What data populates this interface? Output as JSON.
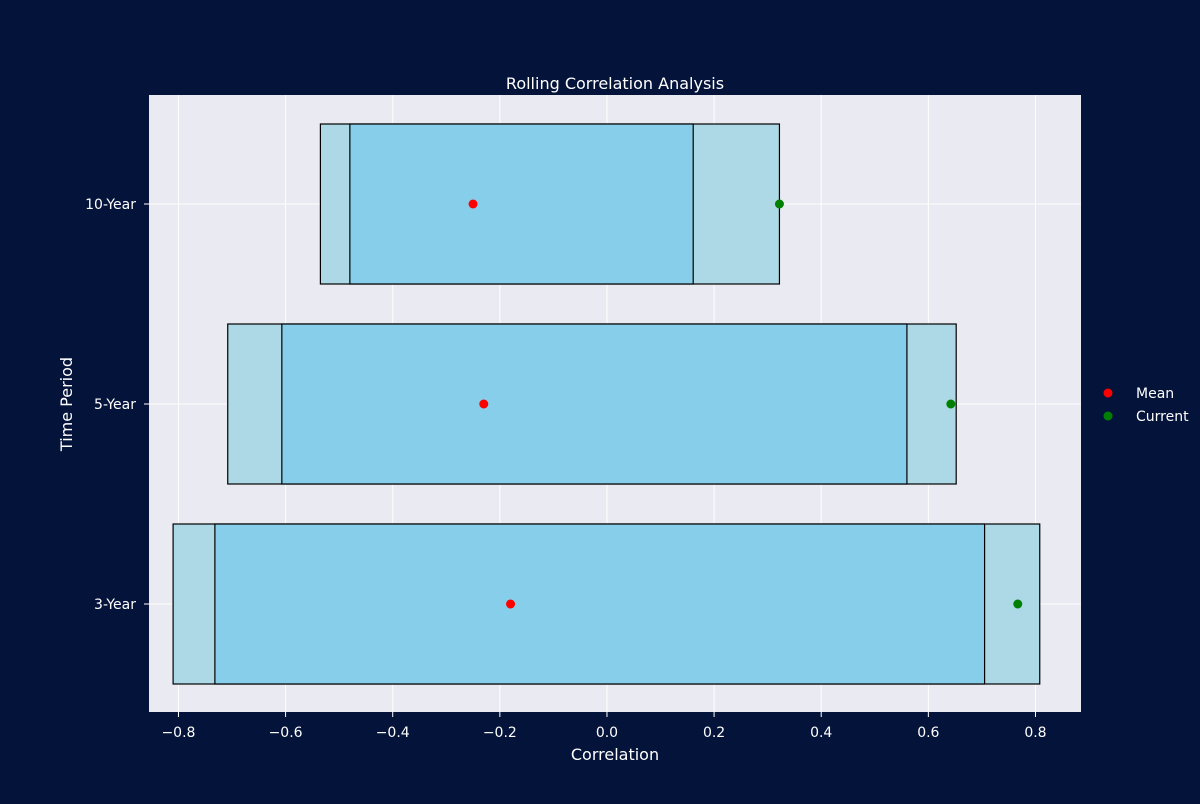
{
  "chart_data": {
    "type": "bar",
    "title": "Rolling Correlation Analysis",
    "xlabel": "Correlation",
    "ylabel": "Time Period",
    "xlim": [
      -0.855,
      0.885
    ],
    "x_ticks": [
      -0.8,
      -0.6,
      -0.4,
      -0.2,
      0.0,
      0.2,
      0.4,
      0.6,
      0.8
    ],
    "x_tick_labels": [
      "−0.8",
      "−0.6",
      "−0.4",
      "−0.2",
      "0.0",
      "0.2",
      "0.4",
      "0.6",
      "0.8"
    ],
    "categories": [
      "3-Year",
      "5-Year",
      "10-Year"
    ],
    "grid": true,
    "legend_placement": "right",
    "series": [
      {
        "category": "3-Year",
        "outer_min": -0.81,
        "inner_low": -0.732,
        "inner_high": 0.705,
        "outer_max": 0.808,
        "mean": -0.18,
        "current": 0.767
      },
      {
        "category": "5-Year",
        "outer_min": -0.708,
        "inner_low": -0.607,
        "inner_high": 0.56,
        "outer_max": 0.652,
        "mean": -0.23,
        "current": 0.642
      },
      {
        "category": "10-Year",
        "outer_min": -0.535,
        "inner_low": -0.48,
        "inner_high": 0.161,
        "outer_max": 0.322,
        "mean": -0.25,
        "current": 0.322
      }
    ],
    "legend": [
      {
        "label": "Mean",
        "color": "#ff0000"
      },
      {
        "label": "Current",
        "color": "#008000"
      }
    ],
    "colors": {
      "figure_background": "#04133a",
      "plot_background": "#eaeaf2",
      "grid": "#ffffff",
      "outer_range": "#add8e6",
      "inner_range": "#87ceeb",
      "edge": "#000000",
      "mean": "#ff0000",
      "current": "#008000"
    }
  }
}
